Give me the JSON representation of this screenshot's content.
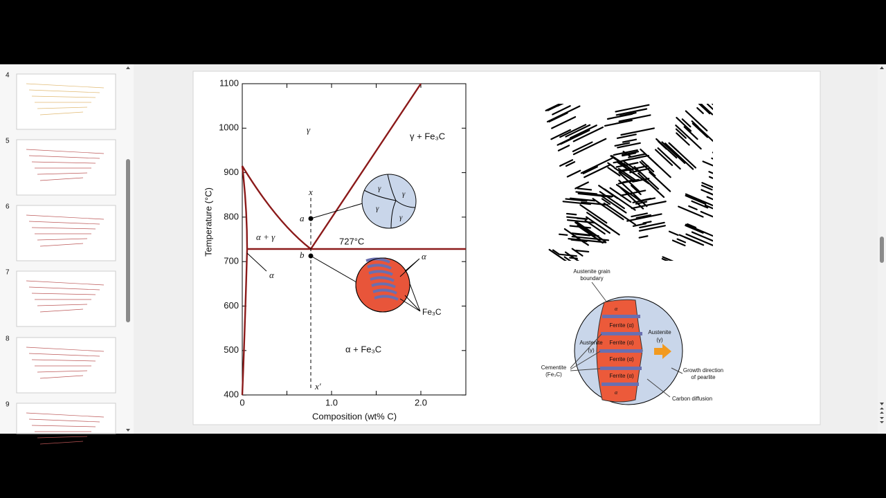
{
  "sidebar": {
    "slides": [
      {
        "number": "4"
      },
      {
        "number": "5"
      },
      {
        "number": "6"
      },
      {
        "number": "7"
      },
      {
        "number": "8"
      },
      {
        "number": "9"
      }
    ]
  },
  "slide": {
    "phase_diagram": {
      "y_axis_label": "Temperature (°C)",
      "x_axis_label": "Composition (wt% C)",
      "y_ticks": [
        "1100",
        "1000",
        "900",
        "800",
        "700",
        "600",
        "500",
        "400"
      ],
      "x_ticks": [
        "0",
        "1.0",
        "2.0"
      ],
      "regions": {
        "gamma": "γ",
        "gamma_fe3c": "γ + Fe₃C",
        "alpha_gamma": "α + γ",
        "alpha": "α",
        "alpha_fe3c": "α + Fe₃C"
      },
      "eutectoid": "727°C",
      "x_top": "x",
      "x_bottom": "x′",
      "point_a": "a",
      "point_b": "b",
      "austenite_grains": [
        "γ",
        "γ",
        "γ",
        "γ"
      ],
      "pearlite_alpha": "α",
      "pearlite_fe3c": "Fe₃C"
    },
    "pearlite_schematic": {
      "grain_boundary": [
        "Austenite grain",
        "boundary"
      ],
      "austenite_left": [
        "Austenite",
        "(γ)"
      ],
      "austenite_right": [
        "Austenite",
        "(γ)"
      ],
      "ferrite": [
        "Ferrite (α)",
        "Ferrite (α)",
        "Ferrite (α)",
        "Ferrite (α)"
      ],
      "alpha_top": "α",
      "alpha_bottom": "α",
      "cementite": [
        "Cementite",
        "(Fe₃C)"
      ],
      "growth": [
        "Growth direction",
        "of pearlite"
      ],
      "carbon_diffusion": "Carbon diffusion"
    }
  }
}
